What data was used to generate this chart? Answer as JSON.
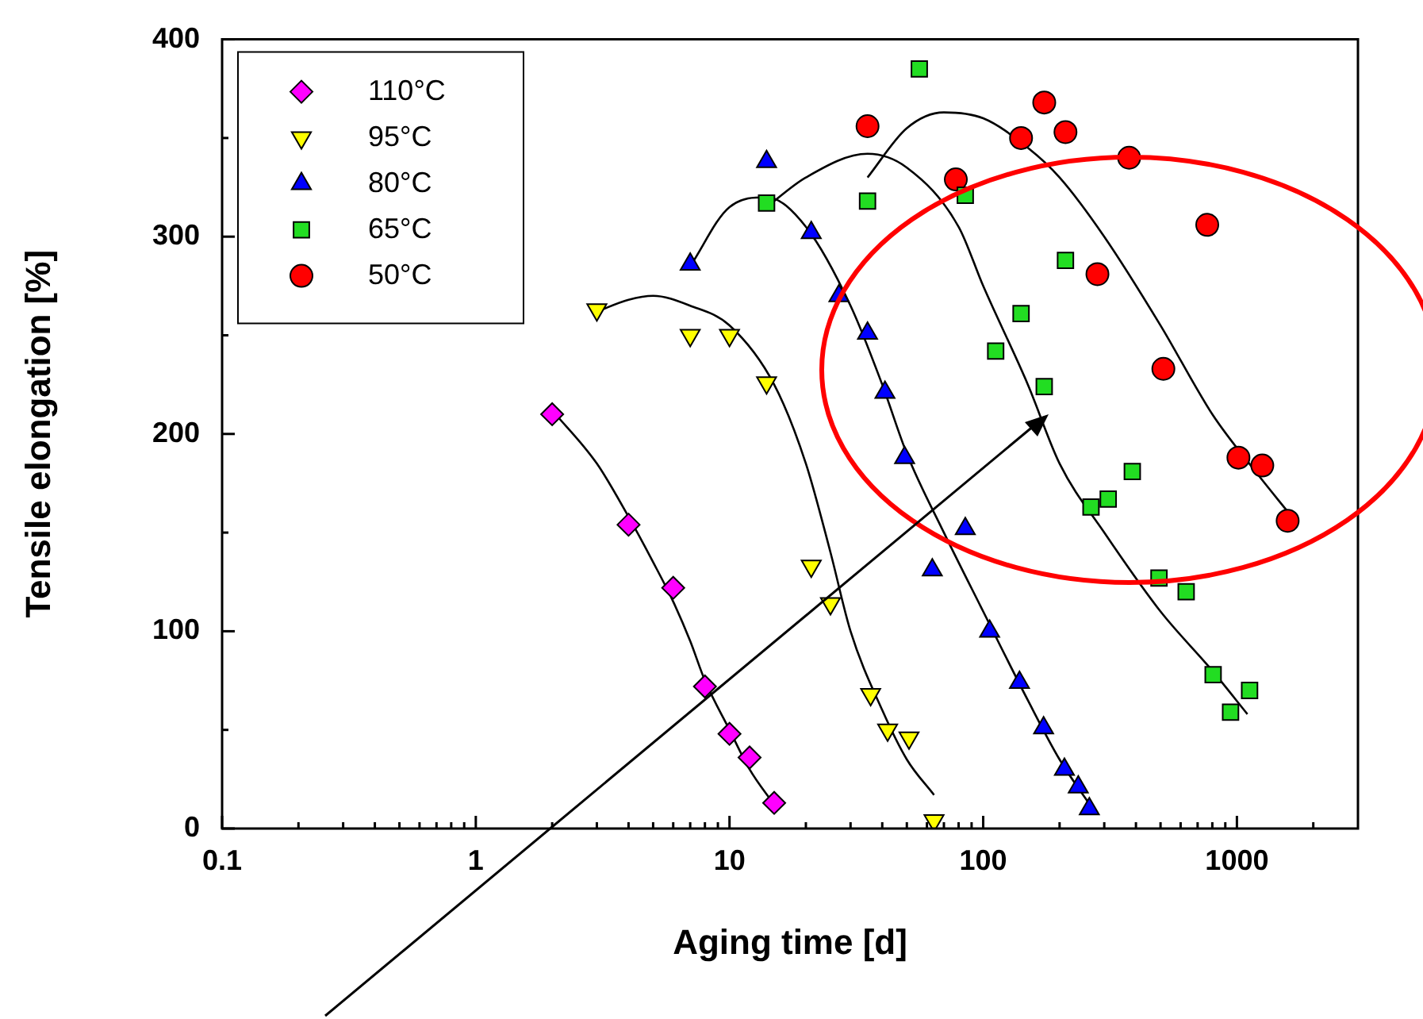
{
  "chart_data": {
    "type": "scatter",
    "xlabel": "Aging time [d]",
    "ylabel": "Tensile elongation [%]",
    "log": "x",
    "grid": false,
    "legend": "top left",
    "xlim": [
      0.1,
      3000
    ],
    "ylim": [
      0,
      400
    ],
    "xticks": [
      0.1,
      {
        "value": 0.2,
        "label": null
      },
      {
        "value": 0.3,
        "label": null
      },
      {
        "value": 0.4,
        "label": null
      },
      {
        "value": 0.5,
        "label": null
      },
      {
        "value": 0.6,
        "label": null
      },
      {
        "value": 0.7,
        "label": null
      },
      {
        "value": 0.8,
        "label": null
      },
      {
        "value": 0.9,
        "label": null
      },
      1,
      {
        "value": 2,
        "label": null
      },
      {
        "value": 3,
        "label": null
      },
      {
        "value": 4,
        "label": null
      },
      {
        "value": 5,
        "label": null
      },
      {
        "value": 6,
        "label": null
      },
      {
        "value": 7,
        "label": null
      },
      {
        "value": 8,
        "label": null
      },
      {
        "value": 9,
        "label": null
      },
      10,
      {
        "value": 20,
        "label": null
      },
      {
        "value": 30,
        "label": null
      },
      {
        "value": 40,
        "label": null
      },
      {
        "value": 50,
        "label": null
      },
      {
        "value": 60,
        "label": null
      },
      {
        "value": 70,
        "label": null
      },
      {
        "value": 80,
        "label": null
      },
      {
        "value": 90,
        "label": null
      },
      100,
      {
        "value": 200,
        "label": null
      },
      {
        "value": 300,
        "label": null
      },
      {
        "value": 400,
        "label": null
      },
      {
        "value": 500,
        "label": null
      },
      {
        "value": 600,
        "label": null
      },
      {
        "value": 700,
        "label": null
      },
      {
        "value": 800,
        "label": null
      },
      {
        "value": 900,
        "label": null
      },
      1000,
      {
        "value": 2000,
        "label": null
      }
    ],
    "yticks": [
      0,
      {
        "value": 50,
        "label": null
      },
      100,
      {
        "value": 150,
        "label": null
      },
      200,
      {
        "value": 250,
        "label": null
      },
      300,
      {
        "value": 350,
        "label": null
      },
      400
    ],
    "series": [
      {
        "name": "110°C",
        "color": "#ff00ff",
        "marker": "diamond",
        "x": [
          2,
          4,
          6,
          8,
          10,
          12,
          15
        ],
        "values": [
          210,
          154,
          122,
          72,
          48,
          36,
          13
        ]
      },
      {
        "name": "95°C",
        "color": "#ffff00",
        "marker": "triangle-down",
        "x": [
          3,
          7,
          10,
          14,
          21,
          25,
          36,
          42,
          51,
          64
        ],
        "values": [
          263,
          250,
          250,
          226,
          133,
          114,
          68,
          50,
          46,
          4
        ]
      },
      {
        "name": "80°C",
        "color": "#0000ff",
        "marker": "triangle",
        "x": [
          7,
          14,
          21,
          27,
          35,
          41,
          49,
          63,
          85,
          106,
          139,
          173,
          209,
          237,
          262
        ],
        "values": [
          286,
          338,
          302,
          270,
          251,
          221,
          188,
          131,
          152,
          100,
          74,
          51,
          30,
          21,
          10
        ]
      },
      {
        "name": "65°C",
        "color": "#22dd22",
        "marker": "square",
        "x": [
          14,
          35,
          56,
          85,
          112,
          141,
          174,
          211,
          266,
          311,
          387,
          493,
          631,
          806,
          944,
          1122
        ],
        "values": [
          317,
          318,
          385,
          321,
          242,
          261,
          224,
          288,
          163,
          167,
          181,
          127,
          120,
          78,
          59,
          70
        ]
      },
      {
        "name": "50°C",
        "color": "#ff0000",
        "marker": "circle",
        "x": [
          35,
          78,
          141,
          174,
          211,
          282,
          376,
          513,
          764,
          1014,
          1259,
          1585
        ],
        "values": [
          356,
          329,
          350,
          368,
          353,
          281,
          340,
          233,
          306,
          188,
          184,
          156
        ]
      },
      {
        "type": "line",
        "color": "#000000",
        "marker": "none",
        "x": [
          2,
          3,
          4,
          5,
          6,
          7,
          8,
          10,
          12,
          15
        ],
        "values": [
          212,
          185,
          158,
          135,
          115,
          95,
          75,
          50,
          30,
          12
        ]
      },
      {
        "type": "line",
        "color": "#000000",
        "marker": "none",
        "x": [
          3,
          4,
          5,
          7,
          10,
          15,
          20,
          25,
          30,
          40,
          50,
          64
        ],
        "values": [
          262,
          268,
          270,
          265,
          255,
          225,
          185,
          140,
          100,
          60,
          35,
          17
        ]
      },
      {
        "type": "line",
        "color": "#000000",
        "marker": "none",
        "x": [
          7,
          10,
          14,
          20,
          30,
          40,
          50,
          70,
          100,
          150,
          200,
          270
        ],
        "values": [
          285,
          315,
          320,
          305,
          265,
          225,
          190,
          150,
          110,
          65,
          35,
          10
        ]
      },
      {
        "type": "line",
        "color": "#000000",
        "marker": "none",
        "x": [
          14,
          20,
          35,
          50,
          80,
          100,
          150,
          200,
          300,
          500,
          800,
          1100
        ],
        "values": [
          315,
          330,
          342,
          335,
          305,
          275,
          225,
          185,
          150,
          110,
          80,
          58
        ]
      },
      {
        "type": "line",
        "color": "#000000",
        "marker": "none",
        "x": [
          35,
          50,
          70,
          100,
          150,
          200,
          300,
          500,
          800,
          1200,
          1600
        ],
        "values": [
          330,
          355,
          363,
          360,
          345,
          330,
          300,
          255,
          210,
          180,
          160
        ]
      }
    ]
  }
}
